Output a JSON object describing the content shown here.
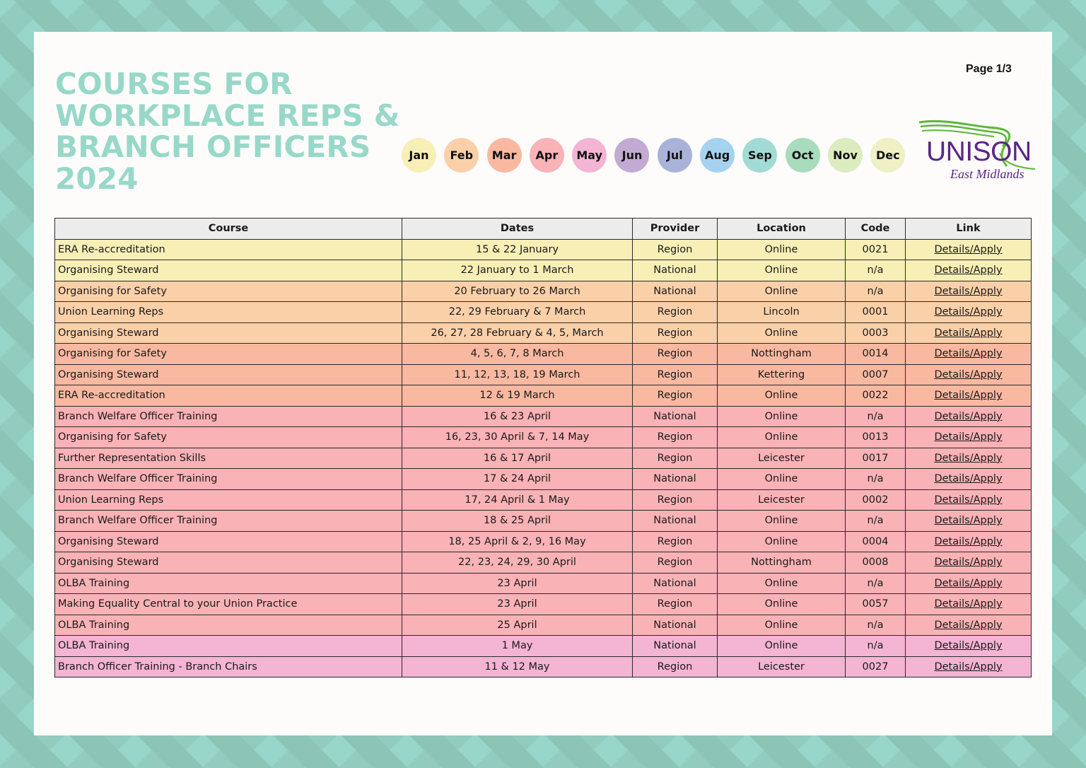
{
  "header": {
    "title_lines": [
      "COURSES FOR",
      "WORKPLACE REPS &",
      "BRANCH OFFICERS",
      "2024"
    ],
    "page_indicator": "Page 1/3",
    "logo": {
      "name": "UNISON",
      "subtitle": "East Midlands"
    }
  },
  "colors": {
    "title": "#98d8c9",
    "logo_purple": "#5a2587",
    "logo_green": "#5cb63a",
    "background_pattern": "#97d6c8"
  },
  "months": [
    {
      "label": "Jan",
      "color": "#f7efb6"
    },
    {
      "label": "Feb",
      "color": "#fad0a9"
    },
    {
      "label": "Mar",
      "color": "#f9b8a0"
    },
    {
      "label": "Apr",
      "color": "#f9b2b6"
    },
    {
      "label": "May",
      "color": "#f4b4d3"
    },
    {
      "label": "Jun",
      "color": "#c2aad3"
    },
    {
      "label": "Jul",
      "color": "#a9b3da"
    },
    {
      "label": "Aug",
      "color": "#a5d2ef"
    },
    {
      "label": "Sep",
      "color": "#a2dbd6"
    },
    {
      "label": "Oct",
      "color": "#a9dbbd"
    },
    {
      "label": "Nov",
      "color": "#dcecbe"
    },
    {
      "label": "Dec",
      "color": "#eff0c4"
    }
  ],
  "table": {
    "columns": [
      "Course",
      "Dates",
      "Provider",
      "Location",
      "Code",
      "Link"
    ],
    "rows": [
      {
        "course": "ERA Re-accreditation",
        "dates": "15 & 22 January",
        "provider": "Region",
        "location": "Online",
        "code": "0021",
        "link": "Details/Apply",
        "month": "jan"
      },
      {
        "course": "Organising Steward",
        "dates": "22 January to 1 March",
        "provider": "National",
        "location": "Online",
        "code": "n/a",
        "link": "Details/Apply",
        "month": "jan"
      },
      {
        "course": "Organising for Safety",
        "dates": "20 February to 26 March",
        "provider": "National",
        "location": "Online",
        "code": "n/a",
        "link": "Details/Apply",
        "month": "feb"
      },
      {
        "course": "Union Learning Reps",
        "dates": "22, 29 February & 7 March",
        "provider": "Region",
        "location": "Lincoln",
        "code": "0001",
        "link": "Details/Apply",
        "month": "feb"
      },
      {
        "course": "Organising Steward",
        "dates": "26, 27, 28 February & 4, 5, March",
        "provider": "Region",
        "location": "Online",
        "code": "0003",
        "link": "Details/Apply",
        "month": "feb"
      },
      {
        "course": "Organising for Safety",
        "dates": "4, 5, 6, 7, 8 March",
        "provider": "Region",
        "location": "Nottingham",
        "code": "0014",
        "link": "Details/Apply",
        "month": "mar"
      },
      {
        "course": "Organising Steward",
        "dates": "11, 12, 13, 18, 19 March",
        "provider": "Region",
        "location": "Kettering",
        "code": "0007",
        "link": "Details/Apply",
        "month": "mar"
      },
      {
        "course": "ERA Re-accreditation",
        "dates": "12 & 19 March",
        "provider": "Region",
        "location": "Online",
        "code": "0022",
        "link": "Details/Apply",
        "month": "mar"
      },
      {
        "course": "Branch Welfare Officer Training",
        "dates": "16 & 23 April",
        "provider": "National",
        "location": "Online",
        "code": "n/a",
        "link": "Details/Apply",
        "month": "apr"
      },
      {
        "course": "Organising for Safety",
        "dates": "16, 23, 30 April & 7, 14 May",
        "provider": "Region",
        "location": "Online",
        "code": "0013",
        "link": "Details/Apply",
        "month": "apr"
      },
      {
        "course": "Further Representation Skills",
        "dates": "16 & 17 April",
        "provider": "Region",
        "location": "Leicester",
        "code": "0017",
        "link": "Details/Apply",
        "month": "apr"
      },
      {
        "course": "Branch Welfare Officer Training",
        "dates": "17 & 24 April",
        "provider": "National",
        "location": "Online",
        "code": "n/a",
        "link": "Details/Apply",
        "month": "apr"
      },
      {
        "course": "Union Learning Reps",
        "dates": "17, 24 April & 1 May",
        "provider": "Region",
        "location": "Leicester",
        "code": "0002",
        "link": "Details/Apply",
        "month": "apr"
      },
      {
        "course": "Branch Welfare Officer Training",
        "dates": "18 & 25 April",
        "provider": "National",
        "location": "Online",
        "code": "n/a",
        "link": "Details/Apply",
        "month": "apr"
      },
      {
        "course": "Organising Steward",
        "dates": "18, 25 April & 2, 9, 16 May",
        "provider": "Region",
        "location": "Online",
        "code": "0004",
        "link": "Details/Apply",
        "month": "apr"
      },
      {
        "course": "Organising Steward",
        "dates": "22, 23, 24, 29, 30 April",
        "provider": "Region",
        "location": "Nottingham",
        "code": "0008",
        "link": "Details/Apply",
        "month": "apr"
      },
      {
        "course": "OLBA Training",
        "dates": "23 April",
        "provider": "National",
        "location": "Online",
        "code": "n/a",
        "link": "Details/Apply",
        "month": "apr"
      },
      {
        "course": "Making Equality Central to your Union Practice",
        "dates": "23 April",
        "provider": "Region",
        "location": "Online",
        "code": "0057",
        "link": "Details/Apply",
        "month": "apr"
      },
      {
        "course": "OLBA Training",
        "dates": "25 April",
        "provider": "National",
        "location": "Online",
        "code": "n/a",
        "link": "Details/Apply",
        "month": "apr"
      },
      {
        "course": "OLBA Training",
        "dates": "1 May",
        "provider": "National",
        "location": "Online",
        "code": "n/a",
        "link": "Details/Apply",
        "month": "may"
      },
      {
        "course": "Branch Officer Training - Branch Chairs",
        "dates": "11 & 12 May",
        "provider": "Region",
        "location": "Leicester",
        "code": "0027",
        "link": "Details/Apply",
        "month": "may"
      }
    ]
  }
}
